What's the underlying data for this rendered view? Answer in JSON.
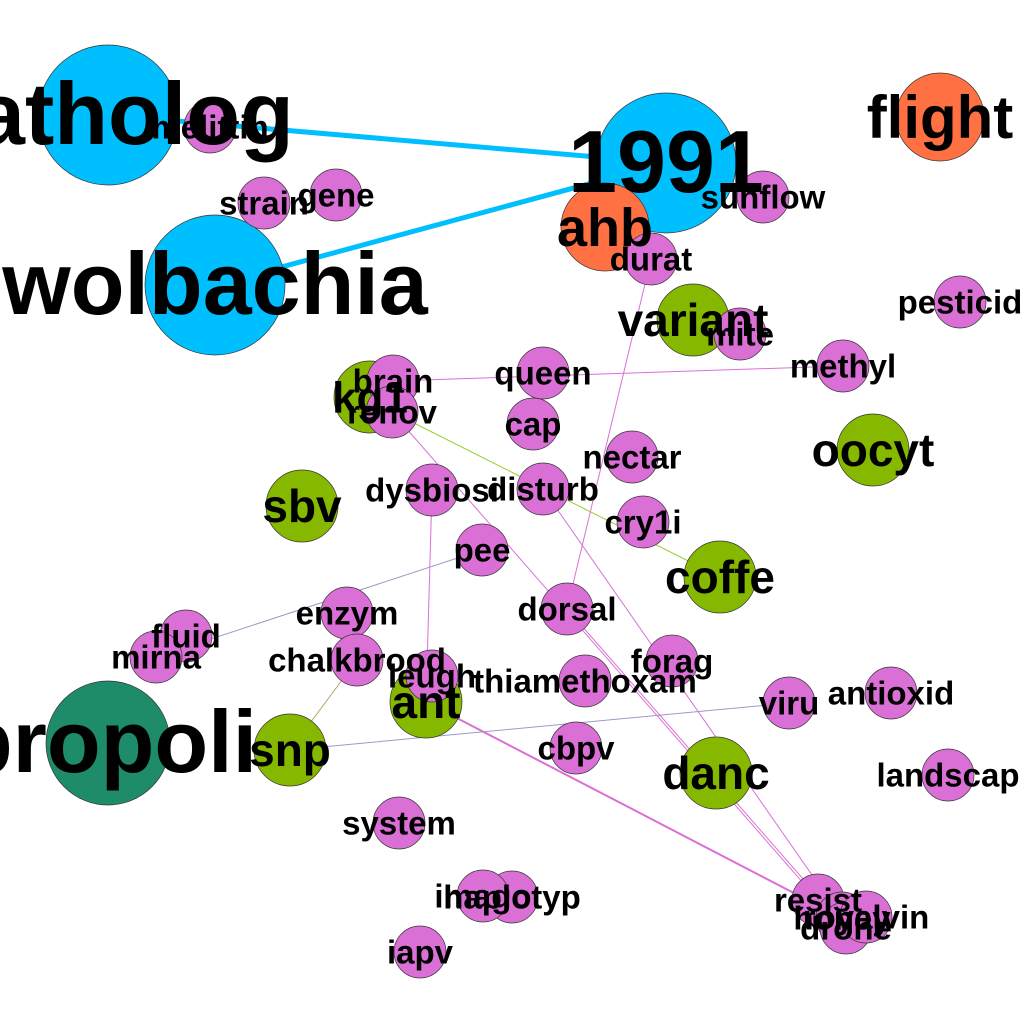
{
  "colors": {
    "cyan": "#00BFFF",
    "orange": "#FF7043",
    "green": "#86B800",
    "teal": "#1E8B6B",
    "pink": "#DA70D6",
    "edge_cyan": "#00BFFF",
    "edge_pink": "#DA70D6",
    "edge_olive": "#9ACD32",
    "edge_slate": "#9A9AC8",
    "edge_tan": "#B8A070"
  },
  "nodes": [
    {
      "id": "patholog",
      "label": "patholog",
      "color": "cyan",
      "level": "xl"
    },
    {
      "id": "wolbachia",
      "label": "wolbachia",
      "color": "cyan",
      "level": "xl"
    },
    {
      "id": "1991",
      "label": "1991",
      "color": "cyan",
      "level": "xl"
    },
    {
      "id": "propoli",
      "label": "propoli",
      "color": "teal",
      "level": "xl"
    },
    {
      "id": "flight",
      "label": "flight",
      "color": "orange",
      "level": "l"
    },
    {
      "id": "ahb",
      "label": "ahb",
      "color": "orange",
      "level": "l"
    },
    {
      "id": "variant",
      "label": "variant",
      "color": "green",
      "level": "m"
    },
    {
      "id": "kg1",
      "label": "kg1",
      "color": "green",
      "level": "m"
    },
    {
      "id": "oocyt",
      "label": "oocyt",
      "color": "green",
      "level": "m"
    },
    {
      "id": "sbv",
      "label": "sbv",
      "color": "green",
      "level": "m"
    },
    {
      "id": "coffe",
      "label": "coffe",
      "color": "green",
      "level": "m"
    },
    {
      "id": "ant",
      "label": "ant",
      "color": "green",
      "level": "m"
    },
    {
      "id": "snp",
      "label": "snp",
      "color": "green",
      "level": "m"
    },
    {
      "id": "danc",
      "label": "danc",
      "color": "green",
      "level": "m"
    },
    {
      "id": "melittin",
      "label": "melittin",
      "color": "pink",
      "level": "s"
    },
    {
      "id": "strain",
      "label": "strain",
      "color": "pink",
      "level": "s"
    },
    {
      "id": "gene",
      "label": "gene",
      "color": "pink",
      "level": "s"
    },
    {
      "id": "sunflow",
      "label": "sunflow",
      "color": "pink",
      "level": "s"
    },
    {
      "id": "durat",
      "label": "durat",
      "color": "pink",
      "level": "s"
    },
    {
      "id": "pesticid",
      "label": "pesticid",
      "color": "pink",
      "level": "s"
    },
    {
      "id": "mite",
      "label": "mite",
      "color": "pink",
      "level": "s"
    },
    {
      "id": "methyl",
      "label": "methyl",
      "color": "pink",
      "level": "s"
    },
    {
      "id": "brain",
      "label": "brain",
      "color": "pink",
      "level": "s"
    },
    {
      "id": "renov",
      "label": "renov",
      "color": "pink",
      "level": "s"
    },
    {
      "id": "queen",
      "label": "queen",
      "color": "pink",
      "level": "s"
    },
    {
      "id": "cap",
      "label": "cap",
      "color": "pink",
      "level": "s"
    },
    {
      "id": "nectar",
      "label": "nectar",
      "color": "pink",
      "level": "s"
    },
    {
      "id": "dysbiosi",
      "label": "dysbiosi",
      "color": "pink",
      "level": "s"
    },
    {
      "id": "disturb",
      "label": "disturb",
      "color": "pink",
      "level": "s"
    },
    {
      "id": "cry1i",
      "label": "cry1i",
      "color": "pink",
      "level": "s"
    },
    {
      "id": "pee",
      "label": "pee",
      "color": "pink",
      "level": "s"
    },
    {
      "id": "enzym",
      "label": "enzym",
      "color": "pink",
      "level": "s"
    },
    {
      "id": "dorsal",
      "label": "dorsal",
      "color": "pink",
      "level": "s"
    },
    {
      "id": "fluid",
      "label": "fluid",
      "color": "pink",
      "level": "s"
    },
    {
      "id": "mirna",
      "label": "mirna",
      "color": "pink",
      "level": "s"
    },
    {
      "id": "chalkbrood",
      "label": "chalkbrood",
      "color": "pink",
      "level": "s"
    },
    {
      "id": "leugh",
      "label": "leugh",
      "color": "pink",
      "level": "s"
    },
    {
      "id": "thiamethoxam",
      "label": "thiamethoxam",
      "color": "pink",
      "level": "s"
    },
    {
      "id": "forag",
      "label": "forag",
      "color": "pink",
      "level": "s"
    },
    {
      "id": "antioxid",
      "label": "antioxid",
      "color": "pink",
      "level": "s"
    },
    {
      "id": "viru",
      "label": "viru",
      "color": "pink",
      "level": "s"
    },
    {
      "id": "cbpv",
      "label": "cbpv",
      "color": "pink",
      "level": "s"
    },
    {
      "id": "landscap",
      "label": "landscap",
      "color": "pink",
      "level": "s"
    },
    {
      "id": "system",
      "label": "system",
      "color": "pink",
      "level": "s"
    },
    {
      "id": "haplotyp",
      "label": "haplotyp",
      "color": "pink",
      "level": "s"
    },
    {
      "id": "imago",
      "label": "imago",
      "color": "pink",
      "level": "s"
    },
    {
      "id": "iapv",
      "label": "iapv",
      "color": "pink",
      "level": "s"
    },
    {
      "id": "resist",
      "label": "resist",
      "color": "pink",
      "level": "s"
    },
    {
      "id": "honey",
      "label": "honey",
      "color": "pink",
      "level": "s"
    },
    {
      "id": "drone",
      "label": "drone",
      "color": "pink",
      "level": "s"
    },
    {
      "id": "royalvin",
      "label": "royalvin",
      "color": "pink",
      "level": "s"
    }
  ],
  "edges": [
    {
      "from": "patholog",
      "to": "1991",
      "color": "edge_cyan",
      "weight": "heavy"
    },
    {
      "from": "wolbachia",
      "to": "1991",
      "color": "edge_cyan",
      "weight": "heavy"
    },
    {
      "from": "durat",
      "to": "dorsal",
      "color": "edge_pink",
      "weight": "light"
    },
    {
      "from": "brain",
      "to": "methyl",
      "color": "edge_pink",
      "weight": "light"
    },
    {
      "from": "renov",
      "to": "coffe",
      "color": "edge_olive",
      "weight": "light"
    },
    {
      "from": "renov",
      "to": "resist",
      "color": "edge_pink",
      "weight": "light"
    },
    {
      "from": "dysbiosi",
      "to": "ant",
      "color": "edge_pink",
      "weight": "light"
    },
    {
      "from": "disturb",
      "to": "honey",
      "color": "edge_pink",
      "weight": "light"
    },
    {
      "from": "dorsal",
      "to": "drone",
      "color": "edge_pink",
      "weight": "light"
    },
    {
      "from": "ant",
      "to": "honey",
      "color": "edge_pink",
      "weight": "medium"
    },
    {
      "from": "mirna",
      "to": "pee",
      "color": "edge_slate",
      "weight": "light"
    },
    {
      "from": "snp",
      "to": "viru",
      "color": "edge_slate",
      "weight": "light"
    },
    {
      "from": "snp",
      "to": "chalkbrood",
      "color": "edge_tan",
      "weight": "light"
    }
  ]
}
